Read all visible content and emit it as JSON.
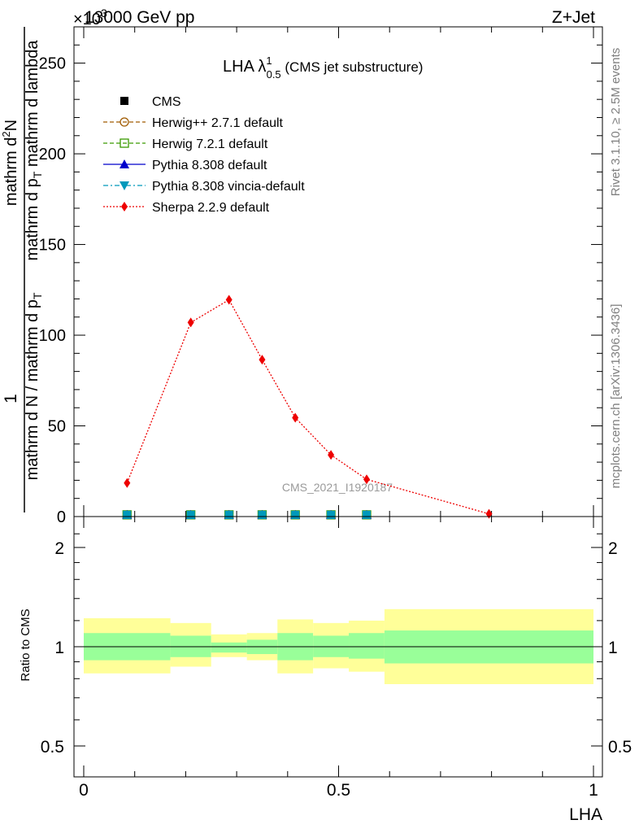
{
  "header": {
    "energy_label": "13000 GeV pp",
    "process_label": "Z+Jet",
    "exponent_label": "×10",
    "exponent_sup": "3"
  },
  "side_labels": {
    "rivet": "Rivet 3.1.10, ≥ 2.5M events",
    "mcplots": "mcplots.cern.ch [arXiv:1306.3436]"
  },
  "colors": {
    "cms": "#000000",
    "herwigpp": "#a05a00",
    "herwig7": "#3a9a00",
    "pythia": "#0000cc",
    "vincia": "#0099bb",
    "sherpa": "#ee0000",
    "band_inner": "#99ff99",
    "band_outer": "#ffff99"
  },
  "chart_data": [
    {
      "type": "line",
      "title": "LHA λ",
      "title_sup": "1",
      "title_sub": "0.5",
      "title_suffix": " (CMS jet substructure)",
      "ylabel_numerator": "1",
      "ylabel_denominator": "mathrm d N / mathrm d p",
      "ylabel_sub": "T",
      "ylabel_right": "mathrm d",
      "ylabel_right_top": "2",
      "ylabel_right_rest": "N",
      "ylabel_right_line2": "mathrm d p",
      "ylabel_right_line2_sub": "T",
      "ylabel_right_line2_rest": " mathrm d lambda",
      "watermark": "CMS_2021_I1920187",
      "xlim": [
        0,
        1
      ],
      "ylim": [
        0,
        270
      ],
      "yticks": [
        0,
        50,
        100,
        150,
        200,
        250
      ],
      "ytick_labels": [
        "0",
        "50",
        "100",
        "150",
        "200",
        "250"
      ],
      "legend_position": "top-left",
      "legend": [
        {
          "label": "CMS",
          "color_key": "cms",
          "marker": "square-filled",
          "line": "none"
        },
        {
          "label": "Herwig++ 2.7.1 default",
          "color_key": "herwigpp",
          "marker": "circle-open",
          "line": "dashed"
        },
        {
          "label": "Herwig 7.2.1 default",
          "color_key": "herwig7",
          "marker": "square-open",
          "line": "dashed"
        },
        {
          "label": "Pythia 8.308 default",
          "color_key": "pythia",
          "marker": "triangle-up",
          "line": "solid"
        },
        {
          "label": "Pythia 8.308 vincia-default",
          "color_key": "vincia",
          "marker": "triangle-down",
          "line": "dashdot"
        },
        {
          "label": "Sherpa 2.2.9 default",
          "color_key": "sherpa",
          "marker": "diamond",
          "line": "dotted"
        }
      ],
      "series": [
        {
          "name": "Sherpa 2.2.9 default",
          "color_key": "sherpa",
          "x": [
            0.085,
            0.21,
            0.285,
            0.35,
            0.415,
            0.485,
            0.555,
            0.795
          ],
          "y": [
            18.5,
            107,
            119.5,
            86.5,
            54.5,
            34,
            20.5,
            1.5
          ]
        },
        {
          "name": "Pythia 8.308 vincia-default",
          "color_key": "vincia",
          "x": [
            0.085,
            0.21,
            0.285,
            0.35,
            0.415,
            0.485,
            0.555
          ],
          "y": [
            0.5,
            0.5,
            0.5,
            0.5,
            0.5,
            0.5,
            0.5
          ]
        }
      ]
    },
    {
      "type": "area",
      "ylabel": "Ratio to CMS",
      "xlabel": "LHA",
      "xlim": [
        0,
        1
      ],
      "ylim": [
        0.4,
        2.4
      ],
      "log_y": true,
      "yticks": [
        0.5,
        1,
        2
      ],
      "ytick_labels": [
        "0.5",
        "1",
        "2"
      ],
      "xticks": [
        0,
        0.5,
        1
      ],
      "xtick_labels": [
        "0",
        "0.5",
        "1"
      ],
      "bins": [
        {
          "x0": 0.0,
          "x1": 0.17,
          "inner": [
            0.91,
            1.1
          ],
          "outer": [
            0.83,
            1.22
          ]
        },
        {
          "x0": 0.17,
          "x1": 0.25,
          "inner": [
            0.93,
            1.08
          ],
          "outer": [
            0.87,
            1.18
          ]
        },
        {
          "x0": 0.25,
          "x1": 0.32,
          "inner": [
            0.96,
            1.03
          ],
          "outer": [
            0.93,
            1.09
          ]
        },
        {
          "x0": 0.32,
          "x1": 0.38,
          "inner": [
            0.95,
            1.05
          ],
          "outer": [
            0.91,
            1.1
          ]
        },
        {
          "x0": 0.38,
          "x1": 0.45,
          "inner": [
            0.91,
            1.1
          ],
          "outer": [
            0.83,
            1.21
          ]
        },
        {
          "x0": 0.45,
          "x1": 0.52,
          "inner": [
            0.93,
            1.08
          ],
          "outer": [
            0.86,
            1.18
          ]
        },
        {
          "x0": 0.52,
          "x1": 0.59,
          "inner": [
            0.92,
            1.1
          ],
          "outer": [
            0.84,
            1.2
          ]
        },
        {
          "x0": 0.59,
          "x1": 1.0,
          "inner": [
            0.89,
            1.12
          ],
          "outer": [
            0.77,
            1.3
          ]
        }
      ]
    }
  ]
}
